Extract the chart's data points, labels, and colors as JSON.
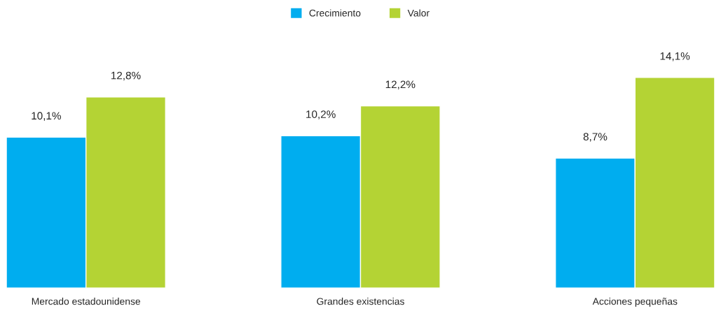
{
  "chart_data": {
    "type": "bar",
    "categories": [
      "Mercado estadounidense",
      "Grandes existencias",
      "Acciones pequeñas"
    ],
    "series": [
      {
        "name": "Crecimiento",
        "color": "#00adef",
        "values": [
          10.1,
          10.2,
          8.7
        ],
        "value_labels": [
          "10,1%",
          "10,2%",
          "8,7%"
        ]
      },
      {
        "name": "Valor",
        "color": "#b4d334",
        "values": [
          12.8,
          12.2,
          14.1
        ],
        "value_labels": [
          "12,8%",
          "12,2%",
          "14,1%"
        ]
      }
    ],
    "legend": "top",
    "grid": false
  }
}
